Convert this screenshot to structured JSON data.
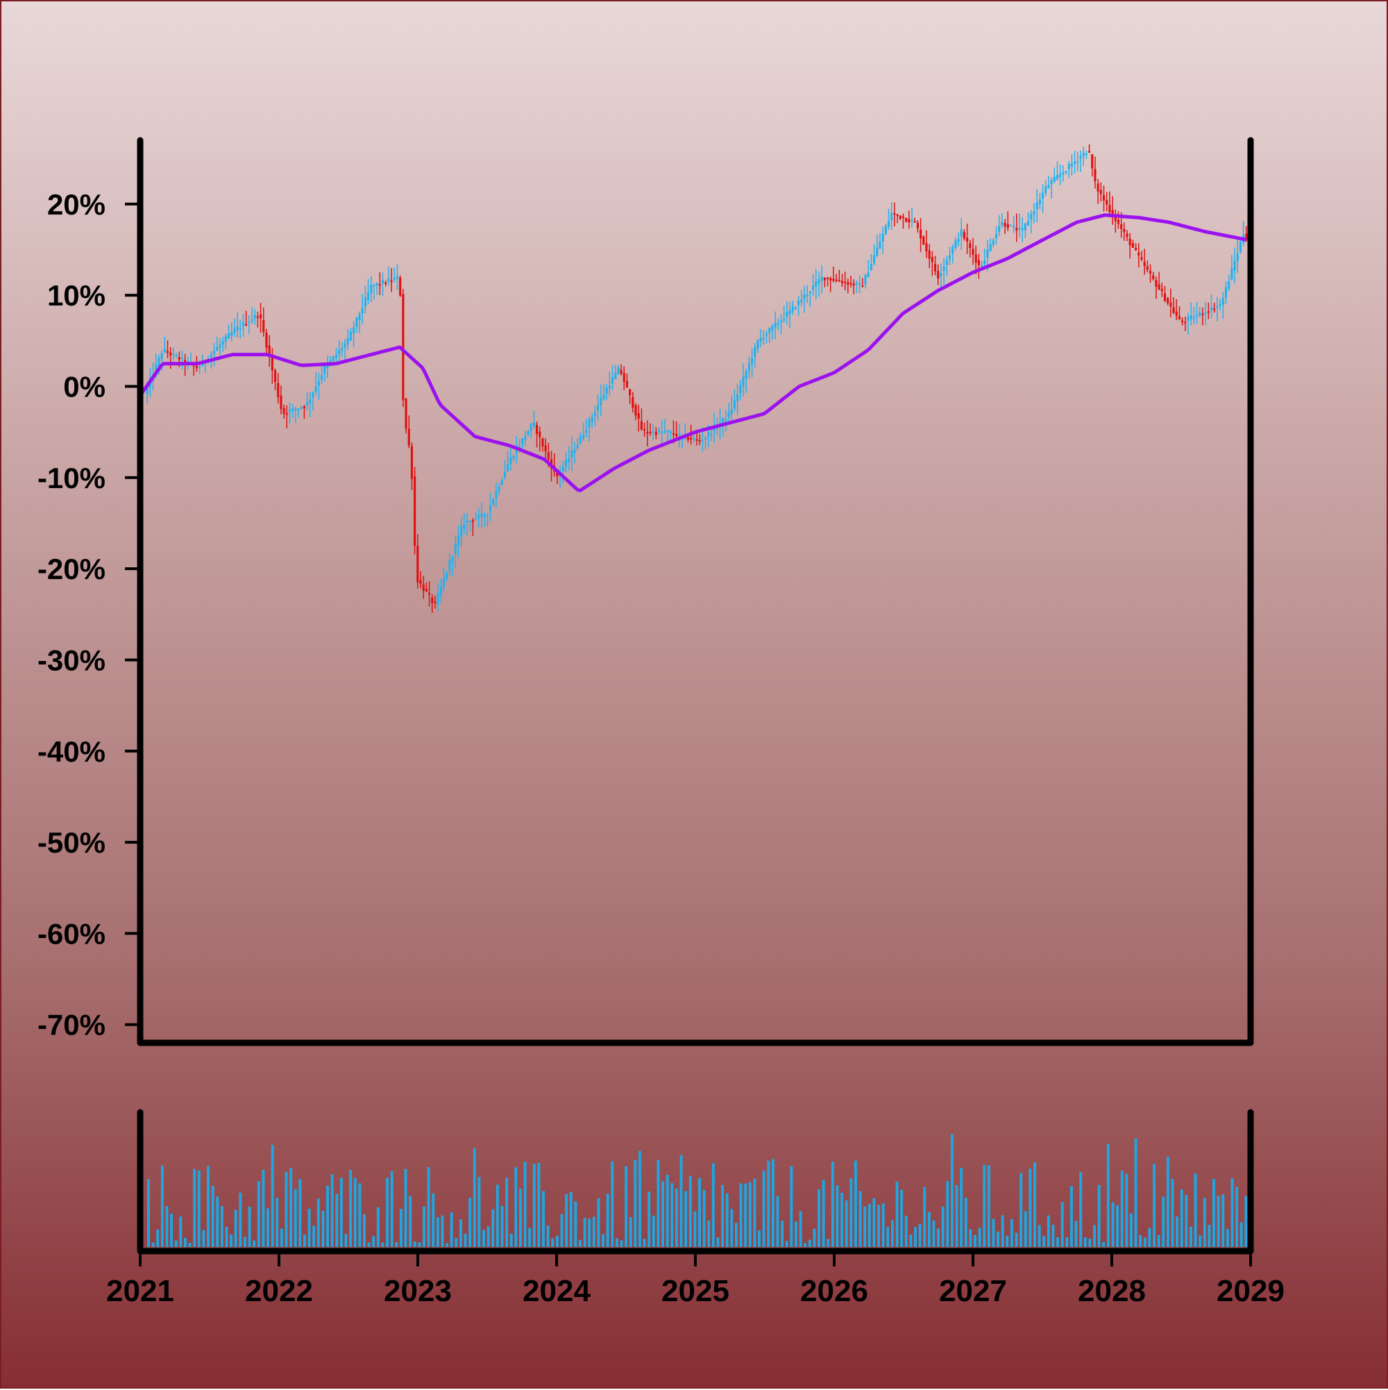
{
  "chart_data": {
    "type": "candlestick",
    "title": "",
    "xlabel": "",
    "ylabel": "",
    "x_range": [
      "2021-01-01",
      "2029-01-01"
    ],
    "x_tick_labels": [
      "2021",
      "2022",
      "2023",
      "2024",
      "2025",
      "2026",
      "2027",
      "2028",
      "2029"
    ],
    "ylim": [
      -72,
      27
    ],
    "y_ticks": [
      20,
      10,
      0,
      -10,
      -20,
      -30,
      -40,
      -50,
      -60,
      -70
    ],
    "y_tick_labels": [
      "20%",
      "10%",
      "0%",
      "-10%",
      "-20%",
      "-30%",
      "-40%",
      "-50%",
      "-60%",
      "-70%"
    ],
    "grid": false,
    "colors": {
      "up": "#1fb2f0",
      "down": "#e01010",
      "moving_average": "#9b12ee",
      "volume": "#1fa6e0"
    },
    "price_anchors": [
      [
        "2021-01-01",
        -2
      ],
      [
        "2021-03-01",
        4
      ],
      [
        "2021-06-01",
        2
      ],
      [
        "2021-09-01",
        6
      ],
      [
        "2021-11-10",
        8
      ],
      [
        "2022-01-10",
        -3
      ],
      [
        "2022-03-15",
        -2
      ],
      [
        "2022-05-01",
        2
      ],
      [
        "2022-07-01",
        5
      ],
      [
        "2022-09-01",
        11
      ],
      [
        "2022-11-15",
        12
      ],
      [
        "2022-11-25",
        -3
      ],
      [
        "2022-12-15",
        -8
      ],
      [
        "2022-12-28",
        -21
      ],
      [
        "2023-02-15",
        -24
      ],
      [
        "2023-05-01",
        -15
      ],
      [
        "2023-07-01",
        -14
      ],
      [
        "2023-09-01",
        -8
      ],
      [
        "2023-11-01",
        -4
      ],
      [
        "2024-01-01",
        -10
      ],
      [
        "2024-03-01",
        -6
      ],
      [
        "2024-05-15",
        0
      ],
      [
        "2024-06-15",
        2
      ],
      [
        "2024-08-15",
        -5
      ],
      [
        "2024-10-15",
        -5
      ],
      [
        "2025-01-15",
        -6
      ],
      [
        "2025-04-01",
        -3
      ],
      [
        "2025-06-15",
        5
      ],
      [
        "2025-09-01",
        8
      ],
      [
        "2025-12-01",
        12
      ],
      [
        "2026-03-15",
        11
      ],
      [
        "2026-06-01",
        19
      ],
      [
        "2026-08-01",
        18
      ],
      [
        "2026-10-01",
        12
      ],
      [
        "2026-12-01",
        17
      ],
      [
        "2027-01-20",
        13
      ],
      [
        "2027-03-15",
        18
      ],
      [
        "2027-05-10",
        17
      ],
      [
        "2027-07-15",
        22
      ],
      [
        "2027-11-01",
        26
      ],
      [
        "2027-11-20",
        22
      ],
      [
        "2028-01-01",
        19
      ],
      [
        "2028-03-15",
        14
      ],
      [
        "2028-07-01",
        7
      ],
      [
        "2028-10-15",
        9
      ],
      [
        "2028-12-15",
        17
      ],
      [
        "2029-01-01",
        15
      ]
    ],
    "moving_average_anchors": [
      [
        "2021-01-01",
        -1
      ],
      [
        "2021-03-01",
        2.5
      ],
      [
        "2021-06-01",
        2.5
      ],
      [
        "2021-09-01",
        3.5
      ],
      [
        "2021-12-01",
        3.5
      ],
      [
        "2022-03-01",
        2.3
      ],
      [
        "2022-06-01",
        2.5
      ],
      [
        "2022-09-01",
        3.5
      ],
      [
        "2022-11-15",
        4.3
      ],
      [
        "2023-01-15",
        2
      ],
      [
        "2023-03-01",
        -2
      ],
      [
        "2023-06-01",
        -5.5
      ],
      [
        "2023-09-01",
        -6.5
      ],
      [
        "2023-12-01",
        -8
      ],
      [
        "2024-03-01",
        -11.5
      ],
      [
        "2024-06-01",
        -9
      ],
      [
        "2024-09-01",
        -7
      ],
      [
        "2025-01-01",
        -5
      ],
      [
        "2025-04-01",
        -4
      ],
      [
        "2025-07-01",
        -3
      ],
      [
        "2025-10-01",
        0
      ],
      [
        "2026-01-01",
        1.5
      ],
      [
        "2026-04-01",
        4
      ],
      [
        "2026-07-01",
        8
      ],
      [
        "2026-10-01",
        10.5
      ],
      [
        "2027-01-01",
        12.5
      ],
      [
        "2027-04-01",
        14
      ],
      [
        "2027-07-01",
        16
      ],
      [
        "2027-10-01",
        18
      ],
      [
        "2027-12-15",
        18.8
      ],
      [
        "2028-03-15",
        18.5
      ],
      [
        "2028-06-01",
        18
      ],
      [
        "2028-09-01",
        17
      ],
      [
        "2029-01-01",
        16
      ]
    ],
    "volume_axis_labels": false
  }
}
